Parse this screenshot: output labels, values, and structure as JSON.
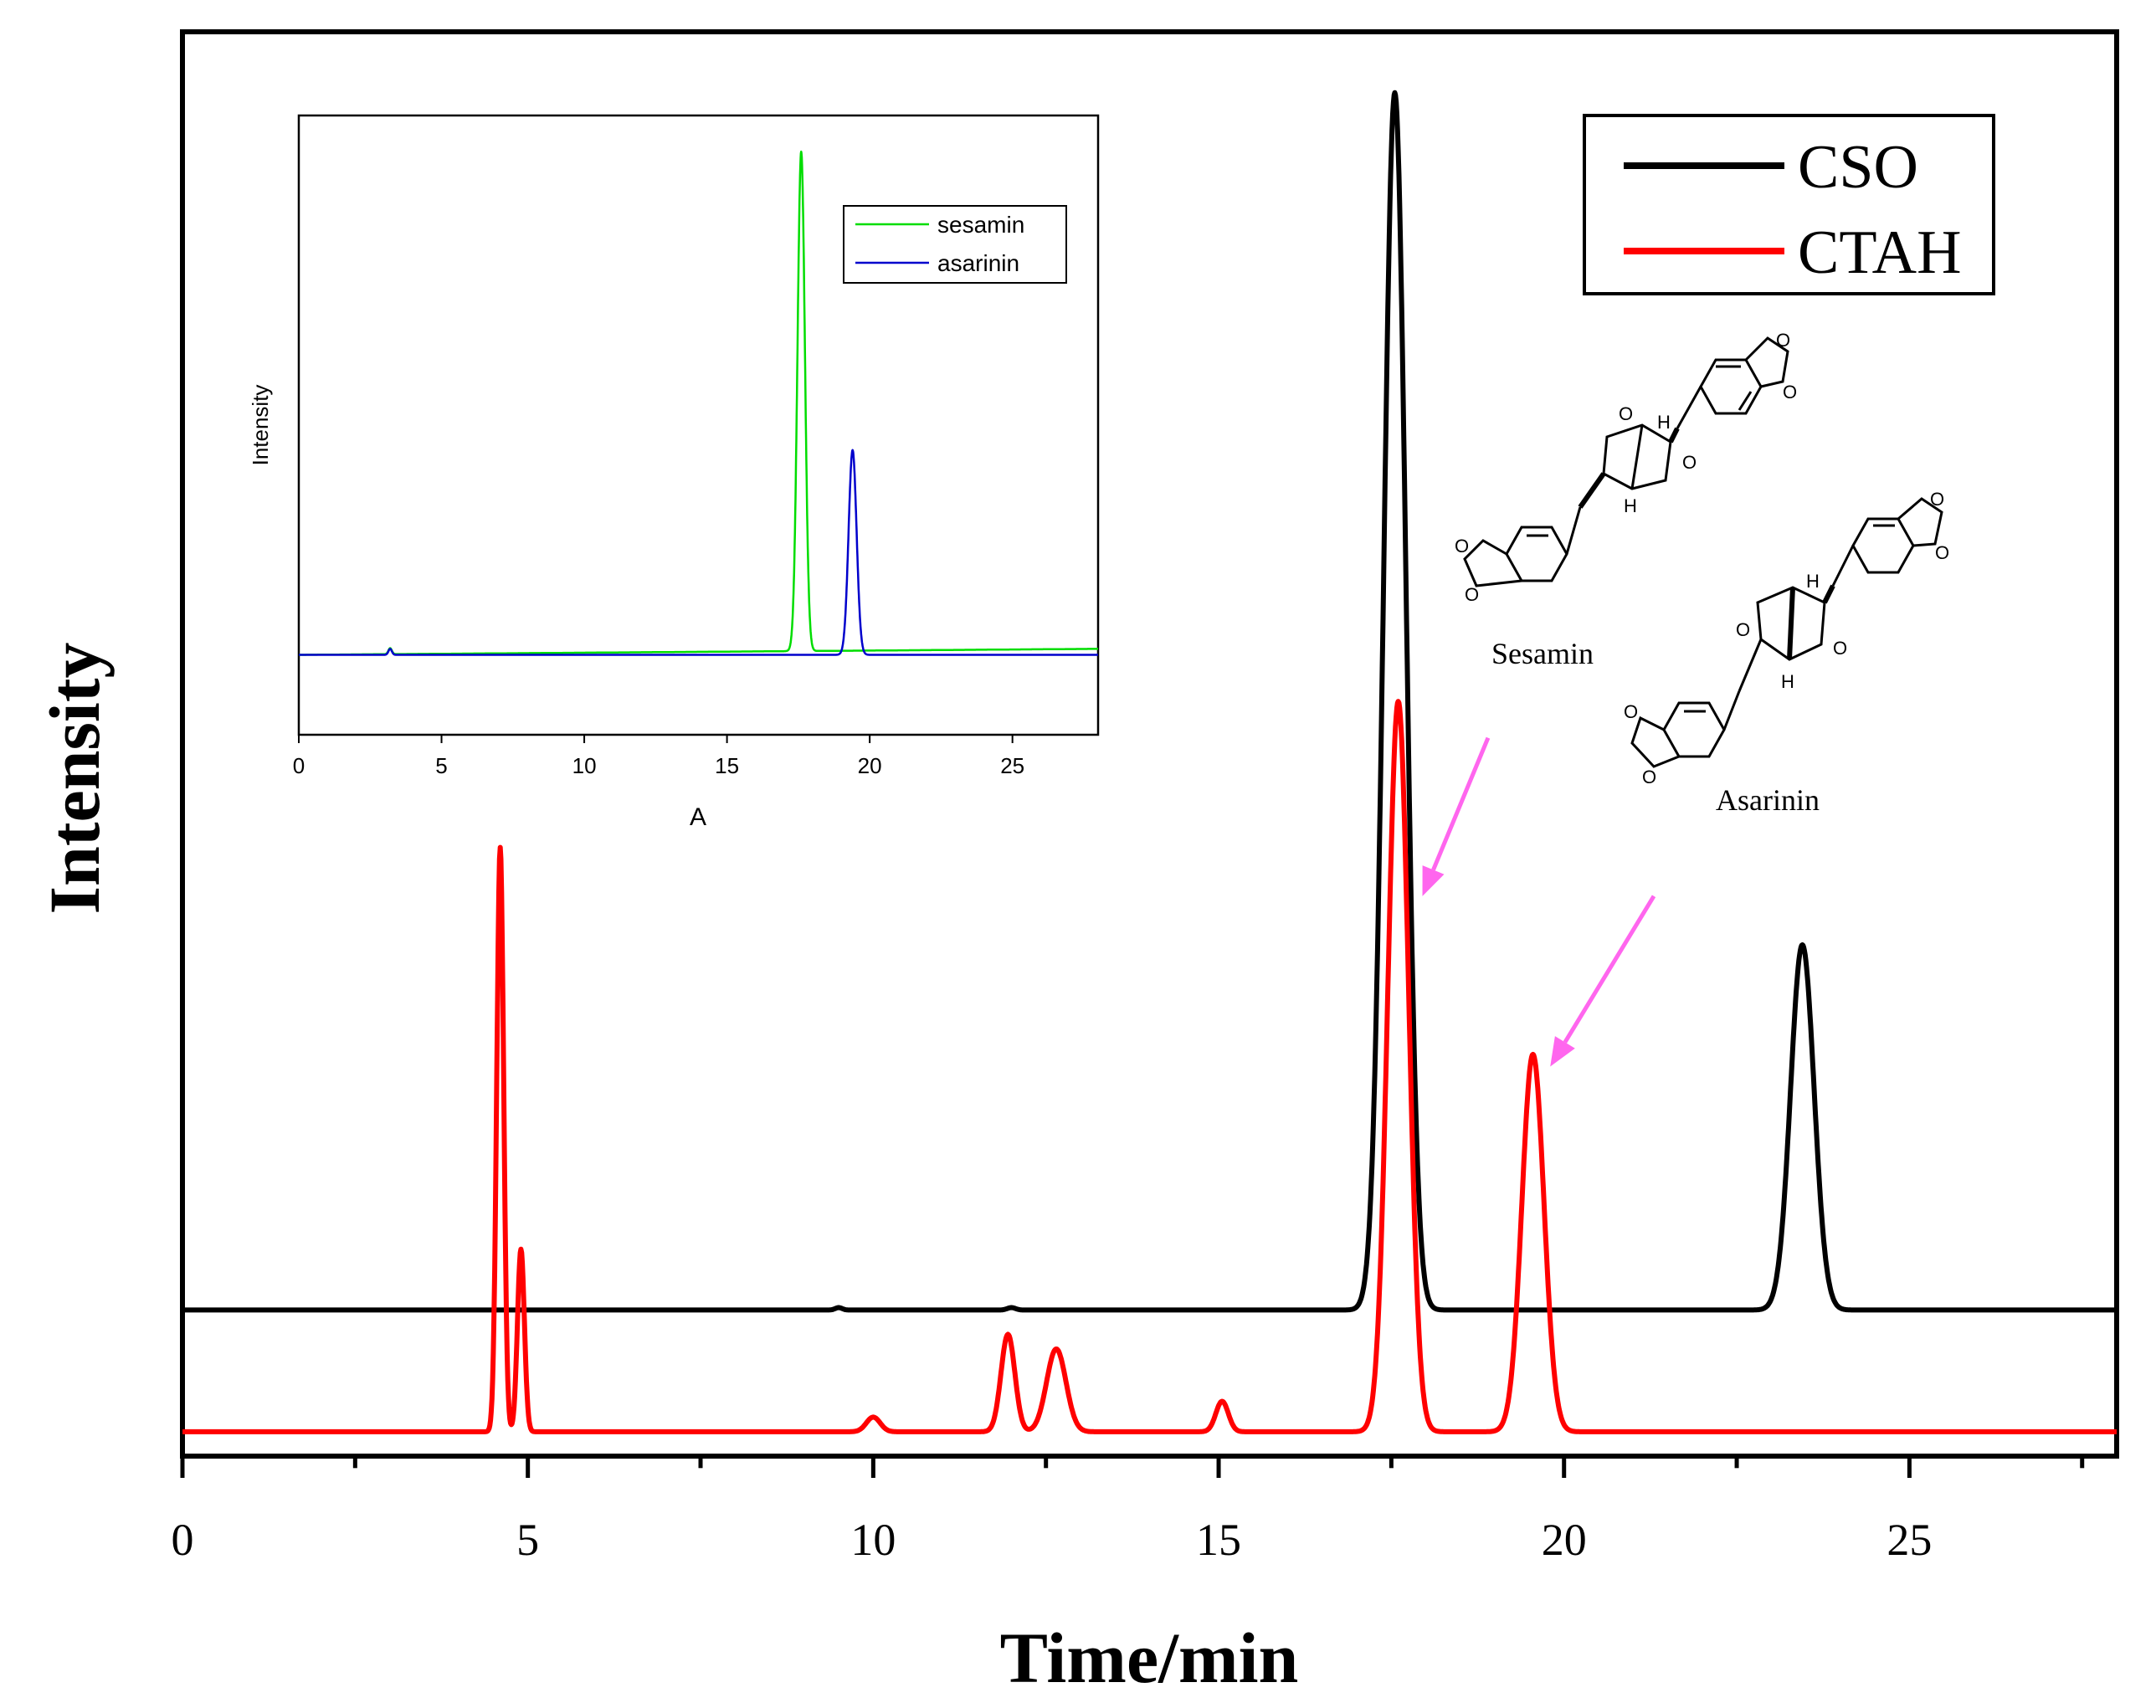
{
  "chart_data": [
    {
      "id": "main",
      "type": "line",
      "xlabel": "Time/min",
      "ylabel": "Intensity",
      "xlim": [
        0,
        28
      ],
      "ylim": [
        -0.12,
        1.05
      ],
      "xticks": [
        0,
        5,
        10,
        15,
        20,
        25
      ],
      "xminor": [
        2.5,
        7.5,
        12.5,
        17.5,
        22.5,
        27.5
      ],
      "yticks": [],
      "legend": {
        "position": "top-right"
      },
      "series": [
        {
          "name": "CSO",
          "color": "#000000",
          "baseline": 0.0,
          "peaks": [
            [
              9.5,
              0.002,
              0.05
            ],
            [
              12.0,
              0.002,
              0.06
            ],
            [
              17.55,
              1.0,
              0.16
            ],
            [
              23.45,
              0.3,
              0.17
            ]
          ]
        },
        {
          "name": "CTAH",
          "color": "#ff0000",
          "baseline": -0.1,
          "peaks": [
            [
              4.6,
              0.48,
              0.05
            ],
            [
              4.9,
              0.15,
              0.05
            ],
            [
              10.0,
              0.012,
              0.1
            ],
            [
              11.95,
              0.08,
              0.1
            ],
            [
              12.65,
              0.068,
              0.14
            ],
            [
              15.05,
              0.025,
              0.09
            ],
            [
              17.6,
              0.6,
              0.15
            ],
            [
              19.55,
              0.31,
              0.16
            ]
          ]
        }
      ],
      "annotations": [
        {
          "text": "Sesamin",
          "arrow_from": [
            18.9,
            0.47
          ],
          "arrow_to": [
            17.95,
            0.34
          ]
        },
        {
          "text": "Asarinin",
          "arrow_from": [
            21.3,
            0.34
          ],
          "arrow_to": [
            19.8,
            0.2
          ]
        }
      ]
    },
    {
      "id": "inset",
      "type": "line",
      "xlabel": "A",
      "ylabel": "Intensity",
      "xlim": [
        0,
        28
      ],
      "ylim": [
        -0.16,
        1.08
      ],
      "xticks": [
        0,
        5,
        10,
        15,
        20,
        25
      ],
      "yticks": [],
      "legend": {
        "position": "top-right"
      },
      "series": [
        {
          "name": "sesamin",
          "color": "#00dd00",
          "baseline": 0.0,
          "drift": 0.012,
          "peaks": [
            [
              17.6,
              1.0,
              0.13
            ],
            [
              3.2,
              0.012,
              0.06
            ]
          ]
        },
        {
          "name": "asarinin",
          "color": "#0000cc",
          "baseline": 0.0,
          "drift": 0.0,
          "peaks": [
            [
              19.4,
              0.41,
              0.14
            ],
            [
              3.2,
              0.012,
              0.06
            ]
          ]
        }
      ]
    }
  ]
}
